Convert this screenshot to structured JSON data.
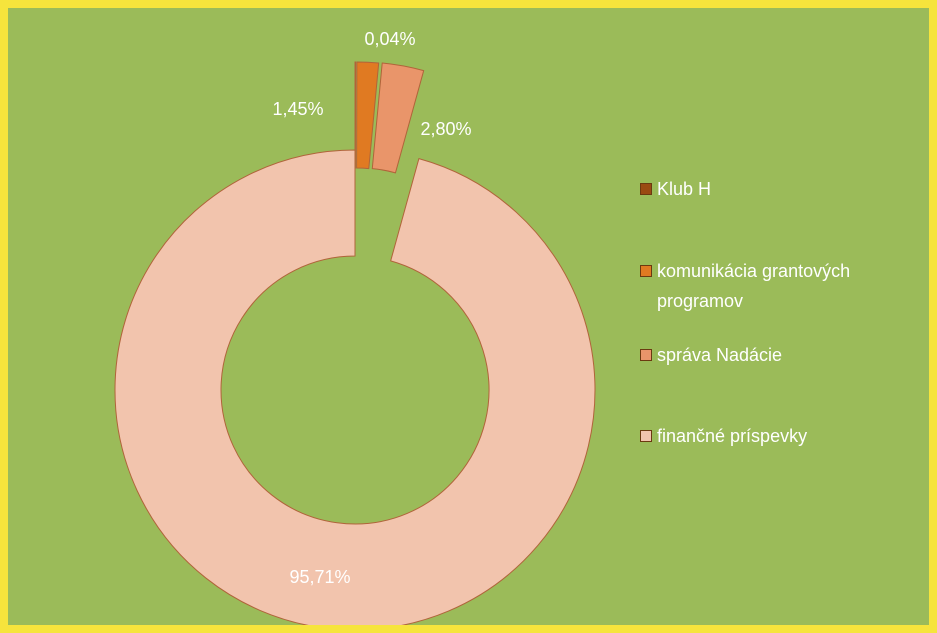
{
  "chart_data": {
    "type": "doughnut",
    "categories": [
      "Klub H",
      "komunikácia grantových programov",
      "správa Nadácie",
      "finančné príspevky"
    ],
    "values": [
      0.04,
      1.45,
      2.8,
      95.71
    ],
    "value_labels": [
      "0,04%",
      "1,45%",
      "2,80%",
      "95,71%"
    ],
    "colors": [
      "#9a4a12",
      "#e07a22",
      "#e9956a",
      "#f2c4ad"
    ],
    "legend": "right"
  }
}
